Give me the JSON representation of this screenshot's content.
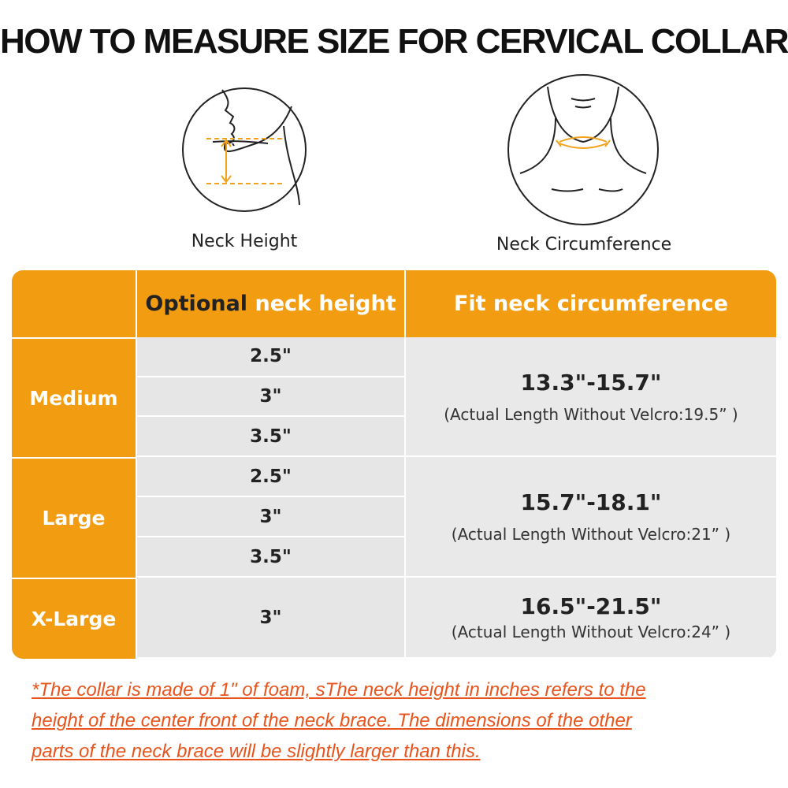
{
  "title": "HOW TO MEASURE SIZE FOR CERVICAL COLLAR",
  "illustrations": [
    {
      "label": "Neck Height"
    },
    {
      "label": "Neck Circumference"
    }
  ],
  "table": {
    "header": {
      "col2_part1": "Optional",
      "col2_part2": "neck height",
      "col3": "Fit neck circumference"
    },
    "rows": [
      {
        "size": "Medium",
        "heights": [
          "2.5\"",
          "3\"",
          "3.5\""
        ],
        "circumference": "13.3\"-15.7\"",
        "note": "(Actual Length Without Velcro:19.5” )"
      },
      {
        "size": "Large",
        "heights": [
          "2.5\"",
          "3\"",
          "3.5\""
        ],
        "circumference": "15.7\"-18.1\"",
        "note": "(Actual Length Without Velcro:21” )"
      },
      {
        "size": "X-Large",
        "heights": [
          "3\""
        ],
        "circumference": "16.5\"-21.5\"",
        "note": "(Actual Length Without Velcro:24” )"
      }
    ]
  },
  "footnote": [
    "*The collar is made of 1\" of foam, sThe neck height in inches refers to the",
    "height of the center front of the neck brace. The dimensions of the other",
    "parts of the neck brace will be slightly larger than this."
  ]
}
